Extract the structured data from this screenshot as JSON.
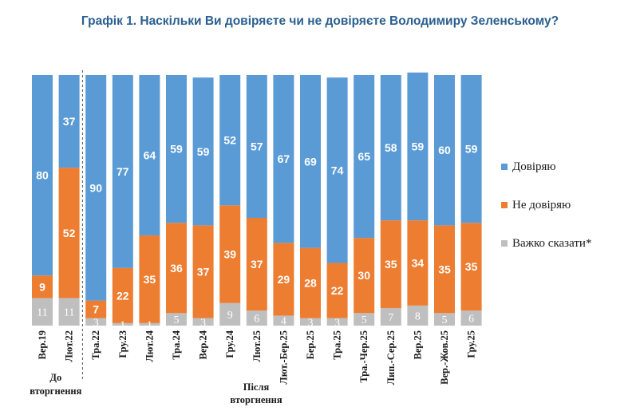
{
  "chart_data": {
    "type": "bar",
    "stacked": true,
    "title": "Графік 1. Наскільки Ви довіряєте чи не довіряєте Володимиру Зеленському?",
    "categories": [
      "Вер.19",
      "Лют.22",
      "Тра.22",
      "Гру.23",
      "Лют.24",
      "Тра.24",
      "Вер.24",
      "Гру.24",
      "Лют.25",
      "Лют.-Бер.25",
      "Бер.25",
      "Тра.25",
      "Тра.-Чер.25",
      "Лип.-Сер.25",
      "Вер.25",
      "Вер.-Жов.25",
      "Гру.25"
    ],
    "series": [
      {
        "name": "Важко сказати*",
        "color": "#bfbfbf",
        "values": [
          11,
          11,
          3,
          1,
          1,
          5,
          3,
          9,
          6,
          4,
          3,
          3,
          5,
          7,
          8,
          5,
          6
        ]
      },
      {
        "name": "Не довіряю",
        "color": "#ed7d31",
        "values": [
          9,
          52,
          7,
          22,
          35,
          36,
          37,
          39,
          37,
          29,
          28,
          22,
          30,
          35,
          34,
          35,
          35
        ]
      },
      {
        "name": "Довіряю",
        "color": "#5b9bd5",
        "values": [
          80,
          37,
          90,
          77,
          64,
          59,
          59,
          52,
          57,
          67,
          69,
          74,
          65,
          58,
          59,
          60,
          59
        ]
      }
    ],
    "ylim": [
      0,
      100
    ],
    "legend_position": "right",
    "groups": [
      {
        "label_line1": "До",
        "label_line2": "вторгнення",
        "from": 0,
        "to": 1
      },
      {
        "label_line1": "Після",
        "label_line2": "вторгнення",
        "from": 2,
        "to": 16
      }
    ]
  }
}
